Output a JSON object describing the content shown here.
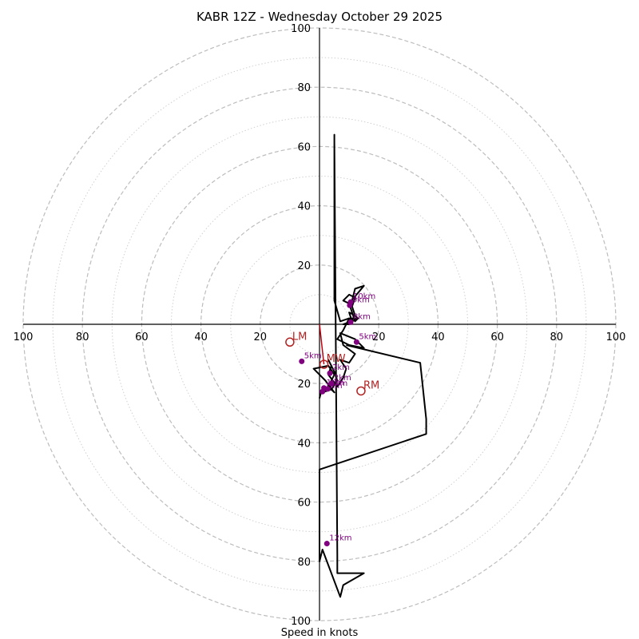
{
  "chart_data": {
    "type": "hodograph",
    "title": "KABR 12Z - Wednesday October 29 2025",
    "xlabel": "Speed in knots",
    "units": "knots",
    "max_speed": 100,
    "major_rings": [
      20,
      40,
      60,
      80,
      100
    ],
    "minor_rings": [
      10,
      30,
      50,
      70,
      90
    ],
    "tick_labels": [
      "20",
      "40",
      "60",
      "80",
      "100"
    ],
    "hodograph_uv": [
      [
        0,
        -25
      ],
      [
        0.5,
        -23
      ],
      [
        3,
        -21
      ],
      [
        5,
        -23
      ],
      [
        2,
        -19
      ],
      [
        -2,
        -15
      ],
      [
        3,
        -14
      ],
      [
        5,
        -17
      ],
      [
        3,
        -21
      ],
      [
        1,
        -23
      ],
      [
        4,
        -22
      ],
      [
        6,
        -19
      ],
      [
        5,
        -16
      ],
      [
        3,
        -12
      ],
      [
        4,
        -14
      ],
      [
        3,
        -17
      ],
      [
        6,
        -21
      ],
      [
        8,
        -18
      ],
      [
        9,
        -15
      ],
      [
        7,
        -12
      ],
      [
        10,
        -13
      ],
      [
        12,
        -10
      ],
      [
        8,
        -7
      ],
      [
        7,
        -3
      ],
      [
        12,
        -5
      ],
      [
        15,
        -8
      ],
      [
        10,
        -7
      ],
      [
        6,
        -5
      ],
      [
        8,
        -2
      ],
      [
        10,
        2
      ],
      [
        11,
        1
      ],
      [
        10,
        4
      ],
      [
        12,
        3
      ],
      [
        13,
        2
      ],
      [
        11,
        1
      ],
      [
        8,
        0
      ],
      [
        10,
        0
      ],
      [
        12,
        3
      ],
      [
        11,
        6
      ],
      [
        12,
        9
      ],
      [
        10,
        10
      ],
      [
        8,
        8
      ],
      [
        10,
        7
      ],
      [
        11,
        8
      ],
      [
        12,
        12
      ],
      [
        15,
        13
      ],
      [
        10,
        7
      ],
      [
        11,
        4
      ],
      [
        12,
        1
      ],
      [
        13,
        2
      ],
      [
        10,
        2
      ],
      [
        7,
        1
      ],
      [
        5,
        8
      ],
      [
        5,
        9
      ],
      [
        5,
        64
      ],
      [
        5,
        62
      ],
      [
        6,
        -78
      ],
      [
        6,
        -84
      ],
      [
        15,
        -84
      ],
      [
        8,
        -88
      ],
      [
        7,
        -92
      ],
      [
        1,
        -76
      ],
      [
        0,
        -80
      ],
      [
        0,
        -49
      ],
      [
        36,
        -37
      ],
      [
        36,
        -32
      ],
      [
        34,
        -13
      ],
      [
        9,
        -7
      ]
    ],
    "height_markers": [
      {
        "label": "12km",
        "u": 2.5,
        "v": -74
      },
      {
        "label": "10km",
        "u": 10.5,
        "v": 7.5
      },
      {
        "label": "9km",
        "u": 10.2,
        "v": 6.4
      },
      {
        "label": "8km",
        "u": 10.5,
        "v": 0.7
      },
      {
        "label": "5km",
        "u": 12.5,
        "v": -6
      },
      {
        "label": "5km",
        "u": -6,
        "v": -12.5
      },
      {
        "label": "2km",
        "u": 3.5,
        "v": -16.5
      },
      {
        "label": "2km",
        "u": 4,
        "v": -20
      },
      {
        "label": "1km",
        "u": 1.5,
        "v": -21.5
      },
      {
        "label": "1km",
        "u": 2.8,
        "v": -21.8
      },
      {
        "label": "1km",
        "u": 1,
        "v": -22.7
      }
    ],
    "motion_markers": [
      {
        "label": "LM",
        "u": -10,
        "v": -6
      },
      {
        "label": "MW",
        "u": 1.5,
        "v": -13.5
      },
      {
        "label": "RM",
        "u": 14,
        "v": -22.5
      }
    ],
    "shear_vector": [
      [
        0,
        0
      ],
      [
        1.5,
        -13.5
      ]
    ]
  }
}
